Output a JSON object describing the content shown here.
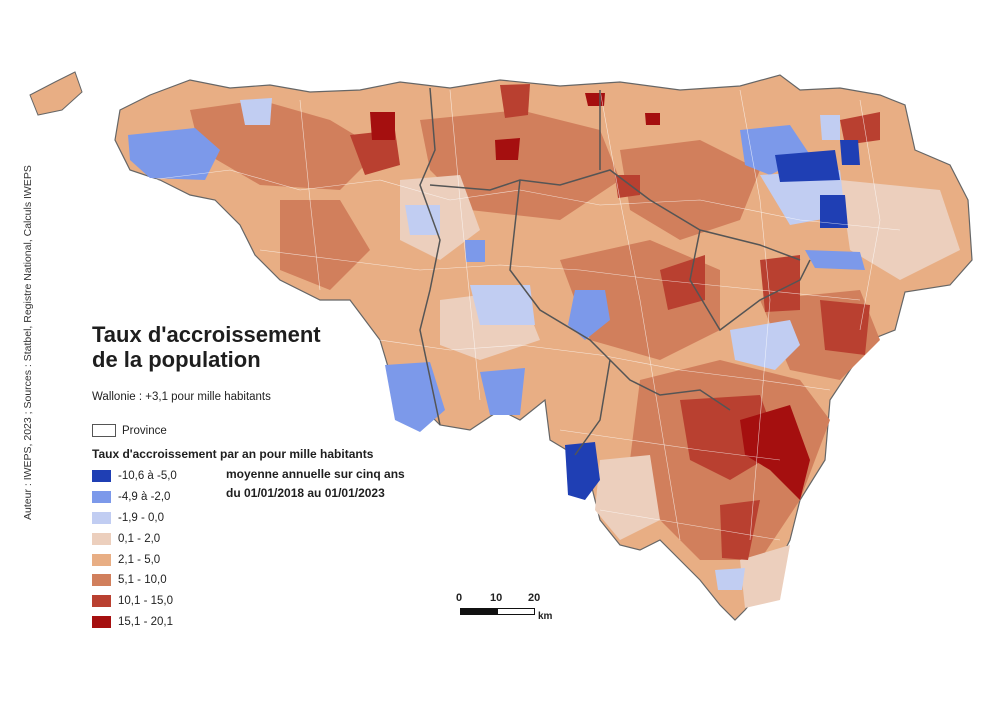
{
  "credit": "Auteur : IWEPS, 2023 ; Sources : Statbel, Registre National, Calculs IWEPS",
  "title": "Taux d'accroissement de la population",
  "summary": "Wallonie : +3,1 pour mille habitants",
  "province_legend": "Province",
  "legend": {
    "title": "Taux d'accroissement par an pour mille habitants",
    "note_line1": "moyenne annuelle sur cinq ans",
    "note_line2": "du 01/01/2018 au 01/01/2023",
    "classes": [
      {
        "label": "-10,6 à -5,0",
        "color": "#1f3fb4"
      },
      {
        "label": "-4,9 à -2,0",
        "color": "#7c99ea"
      },
      {
        "label": "-1,9 - 0,0",
        "color": "#c1cdf2"
      },
      {
        "label": "0,1 - 2,0",
        "color": "#eccfbd"
      },
      {
        "label": "2,1 - 5,0",
        "color": "#e8ae84"
      },
      {
        "label": "5,1 - 10,0",
        "color": "#d17f5c"
      },
      {
        "label": "10,1 - 15,0",
        "color": "#b94030"
      },
      {
        "label": "15,1 - 20,1",
        "color": "#a50f0f"
      }
    ]
  },
  "scale": {
    "ticks": [
      "0",
      "10",
      "20"
    ],
    "unit": "km"
  }
}
